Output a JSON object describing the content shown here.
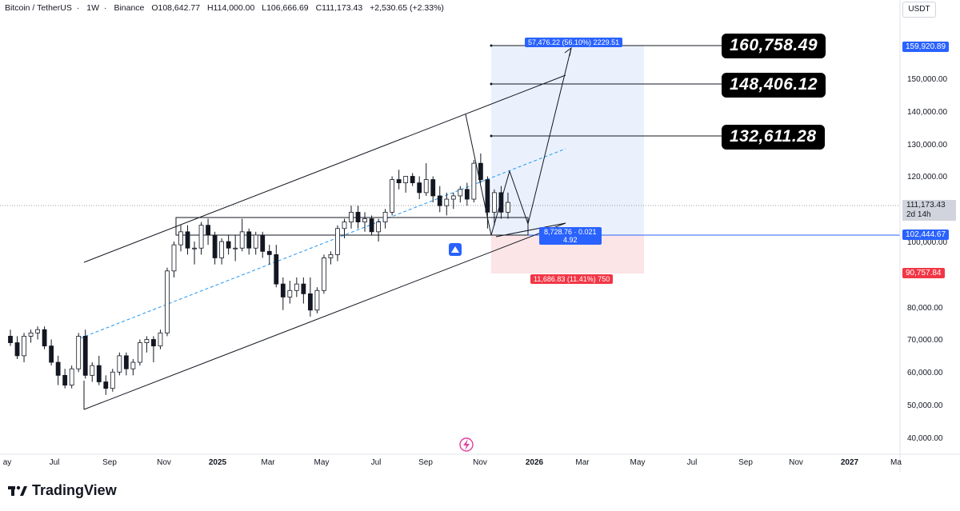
{
  "header": {
    "symbol": "Bitcoin / TetherUS",
    "interval": "1W",
    "exchange": "Binance",
    "open": "O108,642.77",
    "high": "H114,000.00",
    "low": "L106,666.69",
    "close": "C111,173.43",
    "change": "+2,530.65 (+2.33%)"
  },
  "currency": "USDT",
  "price_axis": {
    "labels": [
      "150,000.00",
      "140,000.00",
      "130,000.00",
      "120,000.00",
      "100,000.00",
      "80,000.00",
      "70,000.00",
      "60,000.00",
      "50,000.00",
      "40,000.00"
    ],
    "tags": {
      "target": "159,920.89",
      "current": "111,173.43",
      "countdown": "2d 14h",
      "entry": "102,444.67",
      "stop": "90,757.84"
    }
  },
  "time_axis": {
    "labels": [
      "ay",
      "Jul",
      "Sep",
      "Nov",
      "2025",
      "Mar",
      "May",
      "Jul",
      "Sep",
      "Nov",
      "2026",
      "Mar",
      "May",
      "Jul",
      "Sep",
      "Nov",
      "2027",
      "Ma"
    ]
  },
  "annotations": {
    "target1": "160,758.49",
    "target2": "148,406.12",
    "target3": "132,611.28"
  },
  "position_tool": {
    "profit_label": "57,476.22 (56.10%) 2229.51",
    "loss_label": "11,686.83 (11.41%) 750",
    "mid_label_1": "8,728.76 · 0.021",
    "mid_label_2": "4.92"
  },
  "brand": {
    "name": "TradingView"
  },
  "colors": {
    "up": "#ffffff",
    "down": "#131722",
    "profit_zone": "#eaf1fd",
    "loss_zone": "#fbe5e6",
    "entry_tag": "#2962ff",
    "stop_tag": "#f23645",
    "projection_line": "#2196f3"
  },
  "chart_data": {
    "type": "candlestick",
    "interval": "1W",
    "candles": [
      [
        70,
        72,
        67,
        68
      ],
      [
        68,
        70,
        63,
        64
      ],
      [
        64,
        71,
        62,
        70
      ],
      [
        70,
        72,
        68,
        71
      ],
      [
        71,
        73,
        69,
        72
      ],
      [
        72,
        73,
        66,
        67
      ],
      [
        67,
        69,
        61,
        62
      ],
      [
        62,
        64,
        55,
        58
      ],
      [
        58,
        60,
        54,
        55
      ],
      [
        55,
        61,
        54,
        60
      ],
      [
        60,
        71,
        59,
        70
      ],
      [
        70,
        72,
        57,
        58
      ],
      [
        58,
        62,
        56,
        61
      ],
      [
        61,
        64,
        55,
        56
      ],
      [
        56,
        58,
        52,
        54
      ],
      [
        54,
        60,
        53,
        59
      ],
      [
        59,
        65,
        58,
        64
      ],
      [
        64,
        65,
        58,
        60
      ],
      [
        60,
        63,
        58,
        62
      ],
      [
        62,
        69,
        61,
        68
      ],
      [
        68,
        70,
        65,
        69
      ],
      [
        69,
        70,
        62,
        67
      ],
      [
        67,
        72,
        66,
        71
      ],
      [
        71,
        91,
        70,
        90
      ],
      [
        90,
        99,
        88,
        98
      ],
      [
        98,
        104,
        96,
        102
      ],
      [
        102,
        104,
        95,
        97
      ],
      [
        97,
        99,
        92,
        97
      ],
      [
        97,
        105,
        95,
        104
      ],
      [
        104,
        106,
        98,
        101
      ],
      [
        101,
        102,
        92,
        94
      ],
      [
        94,
        100,
        92,
        99
      ],
      [
        99,
        101,
        95,
        97
      ],
      [
        97,
        101,
        93,
        97
      ],
      [
        97,
        106,
        96,
        102
      ],
      [
        102,
        103,
        95,
        97
      ],
      [
        97,
        102,
        95,
        101
      ],
      [
        101,
        102,
        94,
        96
      ],
      [
        96,
        98,
        92,
        95
      ],
      [
        95,
        98,
        85,
        86
      ],
      [
        86,
        88,
        78,
        82
      ],
      [
        82,
        87,
        80,
        84
      ],
      [
        84,
        88,
        82,
        86
      ],
      [
        86,
        88,
        80,
        83
      ],
      [
        83,
        88,
        76,
        78
      ],
      [
        78,
        85,
        77,
        84
      ],
      [
        84,
        95,
        83,
        94
      ],
      [
        94,
        96,
        92,
        95
      ],
      [
        95,
        104,
        93,
        103
      ],
      [
        103,
        106,
        100,
        105
      ],
      [
        105,
        110,
        103,
        108
      ],
      [
        108,
        110,
        103,
        105
      ],
      [
        105,
        108,
        102,
        106
      ],
      [
        106,
        107,
        101,
        102
      ],
      [
        102,
        106,
        99,
        105
      ],
      [
        105,
        109,
        103,
        108
      ],
      [
        108,
        119,
        107,
        118
      ],
      [
        118,
        121,
        115,
        117
      ],
      [
        117,
        119,
        114,
        119
      ],
      [
        119,
        120,
        116,
        117
      ],
      [
        117,
        119,
        112,
        114
      ],
      [
        114,
        123,
        113,
        118
      ],
      [
        118,
        119,
        111,
        113
      ],
      [
        113,
        116,
        108,
        110
      ],
      [
        110,
        114,
        107,
        112
      ],
      [
        112,
        114,
        109,
        113
      ],
      [
        113,
        116,
        111,
        115
      ],
      [
        115,
        117,
        110,
        112
      ],
      [
        112,
        124,
        111,
        123
      ],
      [
        123,
        126,
        117,
        118
      ],
      [
        118,
        119,
        103,
        108
      ],
      [
        108,
        115,
        104,
        114
      ],
      [
        114,
        116,
        106,
        108
      ],
      [
        108,
        114,
        106,
        111
      ]
    ],
    "price_ticks": [
      40000,
      50000,
      60000,
      70000,
      80000,
      100000,
      120000,
      130000,
      140000,
      150000
    ],
    "ylim": [
      35000,
      168000
    ]
  }
}
